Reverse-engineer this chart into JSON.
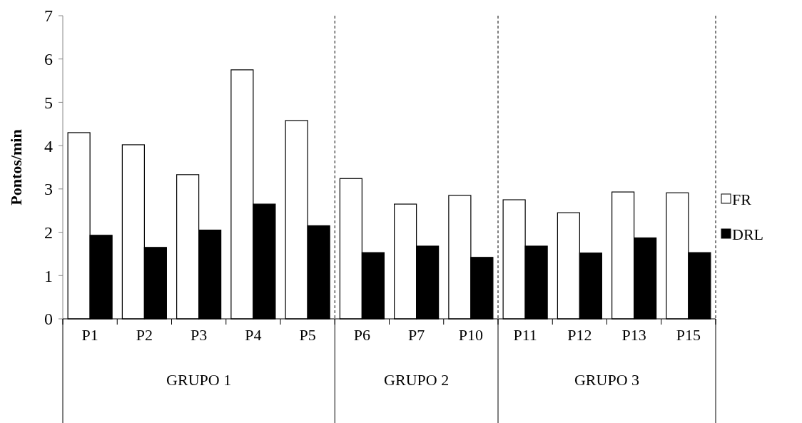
{
  "chart_data": {
    "type": "bar",
    "ylabel": "Pontos/min",
    "categories": [
      "P1",
      "P2",
      "P3",
      "P4",
      "P5",
      "P6",
      "P7",
      "P10",
      "P11",
      "P12",
      "P13",
      "P15"
    ],
    "series": [
      {
        "name": "FR",
        "color": "#ffffff",
        "values": [
          4.3,
          4.02,
          3.33,
          5.75,
          4.58,
          3.24,
          2.65,
          2.85,
          2.75,
          2.45,
          2.93,
          2.91
        ]
      },
      {
        "name": "DRL",
        "color": "#000000",
        "values": [
          1.93,
          1.65,
          2.05,
          2.65,
          2.15,
          1.53,
          1.68,
          1.42,
          1.68,
          1.52,
          1.87,
          1.53
        ]
      }
    ],
    "ylim": [
      0,
      7
    ],
    "yticks": [
      0,
      1,
      2,
      3,
      4,
      5,
      6,
      7
    ],
    "grid": false,
    "legend": "right",
    "annotations": [
      "GRUPO 1",
      "GRUPO 2",
      "GRUPO 3"
    ]
  }
}
